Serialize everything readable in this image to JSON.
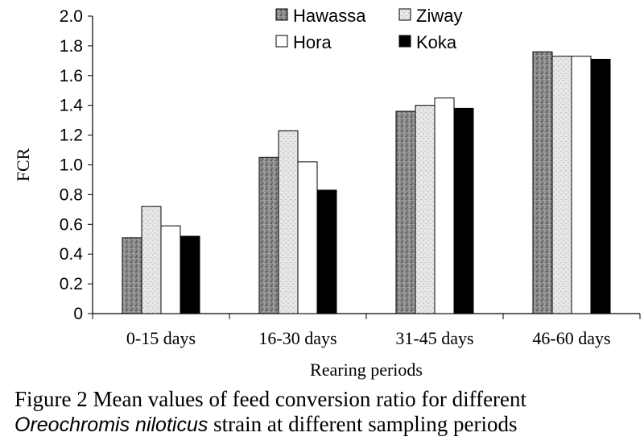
{
  "chart_data": {
    "type": "bar",
    "categories": [
      "0-15 days",
      "16-30 days",
      "31-45 days",
      "46-60 days"
    ],
    "series": [
      {
        "name": "Hawassa",
        "values": [
          0.51,
          1.05,
          1.36,
          1.76
        ],
        "color": "#8a8a8a",
        "pattern": "dark-speckle"
      },
      {
        "name": "Ziway",
        "values": [
          0.72,
          1.23,
          1.4,
          1.73
        ],
        "color": "#e2e2e2",
        "pattern": "light-speckle"
      },
      {
        "name": "Hora",
        "values": [
          0.59,
          1.02,
          1.45,
          1.73
        ],
        "color": "#ffffff",
        "pattern": "none"
      },
      {
        "name": "Koka",
        "values": [
          0.52,
          0.83,
          1.38,
          1.71
        ],
        "color": "#000000",
        "pattern": "none"
      }
    ],
    "xlabel": "Rearing periods",
    "ylabel": "FCR",
    "ylim": [
      0,
      2.0
    ],
    "yticks": [
      "0",
      "0.2",
      "0.4",
      "0.6",
      "0.8",
      "1.0",
      "1.2",
      "1.4",
      "1.6",
      "1.8",
      "2.0"
    ],
    "grid": false,
    "legend_position": "top-center"
  },
  "caption": {
    "line1": "Figure 2 Mean values of feed conversion ratio for different",
    "species": "Oreochromis niloticus",
    "line2_rest": " strain at different sampling periods"
  }
}
